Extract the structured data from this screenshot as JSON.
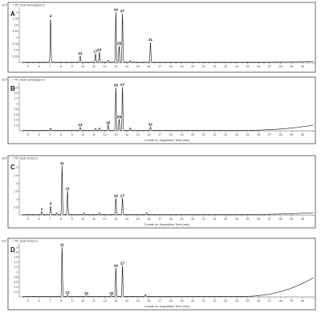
{
  "chart_data": [
    {
      "type": "line",
      "panel_letter": "A",
      "header": "+ TIC Scan lemongrass.d",
      "y_exponent": "x10⁷",
      "yticks": [
        "0.25",
        "0.5",
        "0.75",
        "1",
        "1.25",
        "1.5",
        "1.75",
        "2"
      ],
      "ylim": [
        0,
        2.15
      ],
      "xlim": [
        4.2,
        31.1
      ],
      "xticks": [
        5,
        6,
        7,
        8,
        9,
        10,
        11,
        12,
        13,
        14,
        15,
        16,
        17,
        18,
        19,
        20,
        21,
        22,
        23,
        24,
        25,
        26,
        27,
        28,
        29,
        30
      ],
      "xlabel": "",
      "peaks": [
        {
          "t": 7.05,
          "h": 1.75,
          "label": "4"
        },
        {
          "t": 9.75,
          "h": 0.25,
          "label": "13"
        },
        {
          "t": 11.15,
          "h": 0.33,
          "label": "17"
        },
        {
          "t": 11.5,
          "h": 0.4,
          "label": "19"
        },
        {
          "t": 12.3,
          "h": 0.08,
          "label": ""
        },
        {
          "t": 13.0,
          "h": 2.0,
          "label": "24"
        },
        {
          "t": 13.3,
          "h": 0.65,
          "label": "26"
        },
        {
          "t": 13.6,
          "h": 1.95,
          "label": "27"
        },
        {
          "t": 14.3,
          "h": 0.06,
          "label": ""
        },
        {
          "t": 16.15,
          "h": 0.8,
          "label": "31"
        }
      ],
      "baseline_end": 0.02
    },
    {
      "type": "line",
      "panel_letter": "B",
      "header": "+ TIC Scan cymopogen.d",
      "y_exponent": "x10⁷",
      "yticks": [
        "0.2",
        "0.4",
        "0.6",
        "0.8",
        "1",
        "1.2",
        "1.4",
        "1.6"
      ],
      "ylim": [
        0,
        1.75
      ],
      "xlim": [
        4.2,
        31.1
      ],
      "xticks": [
        5,
        6,
        7,
        8,
        9,
        10,
        11,
        12,
        13,
        14,
        15,
        16,
        17,
        18,
        19,
        20,
        21,
        22,
        23,
        24,
        25,
        26,
        27,
        28,
        29,
        30
      ],
      "xlabel": "Counts vs. Acquisition Time (min)",
      "peaks": [
        {
          "t": 7.05,
          "h": 0.08,
          "label": ""
        },
        {
          "t": 9.75,
          "h": 0.12,
          "label": "13"
        },
        {
          "t": 11.15,
          "h": 0.08,
          "label": ""
        },
        {
          "t": 11.5,
          "h": 0.09,
          "label": ""
        },
        {
          "t": 12.3,
          "h": 0.2,
          "label": "20"
        },
        {
          "t": 13.0,
          "h": 1.58,
          "label": "24"
        },
        {
          "t": 13.3,
          "h": 0.42,
          "label": "26"
        },
        {
          "t": 13.6,
          "h": 1.6,
          "label": "27"
        },
        {
          "t": 14.3,
          "h": 0.09,
          "label": ""
        },
        {
          "t": 16.15,
          "h": 0.13,
          "label": "31"
        }
      ],
      "baseline_end": 0.2
    },
    {
      "type": "line",
      "panel_letter": "C",
      "header": "+ TIC Scan lemon.d",
      "y_exponent": "x10⁷",
      "yticks": [
        "0.5",
        "1",
        "1.5",
        "2",
        "2.5",
        "3"
      ],
      "ylim": [
        0,
        3.35
      ],
      "xlim": [
        4.2,
        31.1
      ],
      "xticks": [
        5,
        6,
        7,
        8,
        9,
        10,
        11,
        12,
        13,
        14,
        15,
        16,
        17,
        18,
        19,
        20,
        21,
        22,
        23,
        24,
        25,
        26,
        27,
        28,
        29,
        30
      ],
      "xlabel": "Counts vs. Acquisition Time (min)",
      "peaks": [
        {
          "t": 6.25,
          "h": 0.2,
          "label": "1"
        },
        {
          "t": 7.05,
          "h": 0.55,
          "label": "4"
        },
        {
          "t": 7.6,
          "h": 0.12,
          "label": ""
        },
        {
          "t": 8.1,
          "h": 3.1,
          "label": "11"
        },
        {
          "t": 8.6,
          "h": 1.5,
          "label": "12"
        },
        {
          "t": 10.1,
          "h": 0.1,
          "label": ""
        },
        {
          "t": 11.5,
          "h": 0.12,
          "label": ""
        },
        {
          "t": 13.0,
          "h": 1.05,
          "label": "24"
        },
        {
          "t": 13.6,
          "h": 1.05,
          "label": "27"
        },
        {
          "t": 15.8,
          "h": 0.12,
          "label": ""
        }
      ],
      "baseline_end": 0.12
    },
    {
      "type": "line",
      "panel_letter": "D",
      "header": "+ TIC Scan lemon.d",
      "y_exponent": "x10⁷",
      "yticks": [
        "0.2",
        "0.4",
        "0.6",
        "0.8",
        "1",
        "1.2",
        "1.4",
        "1.6",
        "1.8",
        "2"
      ],
      "ylim": [
        0,
        2.1
      ],
      "xlim": [
        4.2,
        31.1
      ],
      "xticks": [
        5,
        6,
        7,
        8,
        9,
        10,
        11,
        12,
        13,
        14,
        15,
        16,
        17,
        18,
        19,
        20,
        21,
        22,
        23,
        24,
        25,
        26,
        27,
        28,
        29,
        30
      ],
      "xlabel": "Counts vs. Acquisition Time (min)",
      "peaks": [
        {
          "t": 8.1,
          "h": 1.98,
          "label": "11"
        },
        {
          "t": 8.6,
          "h": 0.06,
          "label": "12"
        },
        {
          "t": 10.3,
          "h": 0.03,
          "label": "14"
        },
        {
          "t": 12.6,
          "h": 0.04,
          "label": "22"
        },
        {
          "t": 13.0,
          "h": 1.15,
          "label": "24"
        },
        {
          "t": 13.6,
          "h": 1.25,
          "label": "27"
        },
        {
          "t": 15.7,
          "h": 0.08,
          "label": ""
        }
      ],
      "baseline_end": 0.78
    }
  ]
}
